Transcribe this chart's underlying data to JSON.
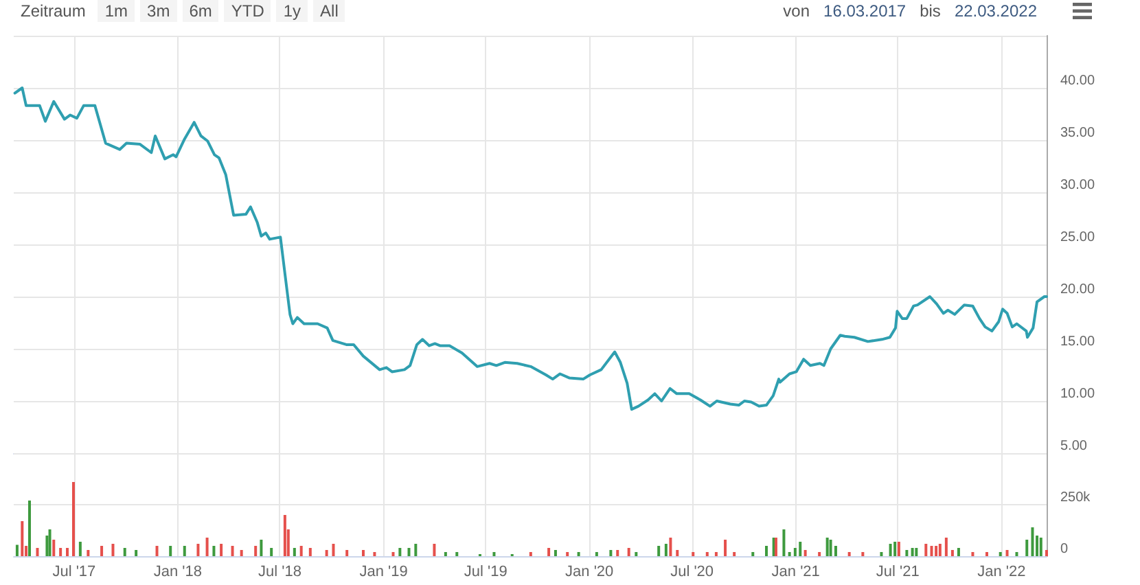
{
  "chart_data": [
    {
      "type": "line",
      "annotations": [
        "Zeitraum",
        "1m",
        "3m",
        "6m",
        "YTD",
        "1y",
        "All",
        "von",
        "16.03.2017",
        "bis",
        "22.03.2022"
      ],
      "xlim": [
        "2017-03-16",
        "2022-03-22"
      ],
      "xticks": [
        {
          "value": "2017-07-01",
          "label": null
        },
        {
          "value": "2018-01-01",
          "label": null
        },
        {
          "value": "2018-07-01",
          "label": null
        },
        {
          "value": "2019-01-01",
          "label": null
        },
        {
          "value": "2019-07-01",
          "label": null
        },
        {
          "value": "2020-01-01",
          "label": null
        },
        {
          "value": "2020-07-01",
          "label": null
        },
        {
          "value": "2021-01-01",
          "label": null
        },
        {
          "value": "2021-07-01",
          "label": null
        },
        {
          "value": "2022-01-01",
          "label": null
        }
      ],
      "ylim": [
        5,
        45
      ],
      "yticks": [
        {
          "value": 5,
          "label": "5.00"
        },
        {
          "value": 10,
          "label": "10.00"
        },
        {
          "value": 15,
          "label": "15.00"
        },
        {
          "value": 20,
          "label": "20.00"
        },
        {
          "value": 25,
          "label": "25.00"
        },
        {
          "value": 30,
          "label": "30.00"
        },
        {
          "value": 35,
          "label": "35.00"
        },
        {
          "value": 40,
          "label": "40.00"
        },
        {
          "value": 45,
          "label": null
        }
      ],
      "tick_labels": "y",
      "grid": true,
      "marker": "none",
      "line_style": "solid",
      "series": [
        {
          "color": "#2f9fb0",
          "x": [
            "2017-03-18",
            "2017-03-31",
            "2017-04-07",
            "2017-05-01",
            "2017-05-11",
            "2017-05-26",
            "2017-06-14",
            "2017-06-24",
            "2017-07-06",
            "2017-07-18",
            "2017-08-07",
            "2017-08-26",
            "2017-09-20",
            "2017-10-02",
            "2017-10-26",
            "2017-11-15",
            "2017-11-22",
            "2017-12-09",
            "2017-12-24",
            "2017-12-29",
            "2018-01-13",
            "2018-01-30",
            "2018-02-11",
            "2018-02-23",
            "2018-03-07",
            "2018-03-15",
            "2018-03-27",
            "2018-04-10",
            "2018-05-02",
            "2018-05-10",
            "2018-05-22",
            "2018-05-29",
            "2018-06-06",
            "2018-06-13",
            "2018-07-02",
            "2018-07-10",
            "2018-07-19",
            "2018-07-24",
            "2018-08-01",
            "2018-08-13",
            "2018-09-06",
            "2018-09-23",
            "2018-10-03",
            "2018-10-27",
            "2018-11-09",
            "2018-11-26",
            "2018-12-25",
            "2019-01-06",
            "2019-01-16",
            "2019-02-07",
            "2019-02-17",
            "2019-03-01",
            "2019-03-11",
            "2019-03-23",
            "2019-04-02",
            "2019-04-11",
            "2019-04-28",
            "2019-05-20",
            "2019-06-16",
            "2019-07-08",
            "2019-07-20",
            "2019-08-04",
            "2019-08-26",
            "2019-09-19",
            "2019-10-16",
            "2019-10-28",
            "2019-11-10",
            "2019-11-27",
            "2019-12-21",
            "2020-01-02",
            "2020-01-22",
            "2020-02-15",
            "2020-02-25",
            "2020-03-08",
            "2020-03-16",
            "2020-03-28",
            "2020-04-14",
            "2020-04-26",
            "2020-05-08",
            "2020-05-23",
            "2020-06-04",
            "2020-06-26",
            "2020-07-16",
            "2020-08-02",
            "2020-08-14",
            "2020-09-07",
            "2020-09-22",
            "2020-10-02",
            "2020-10-14",
            "2020-10-28",
            "2020-11-10",
            "2020-11-22",
            "2020-12-02",
            "2020-12-04",
            "2020-12-21",
            "2021-01-02",
            "2021-01-15",
            "2021-01-27",
            "2021-02-13",
            "2021-02-20",
            "2021-03-04",
            "2021-03-21",
            "2021-03-29",
            "2021-04-15",
            "2021-05-09",
            "2021-06-03",
            "2021-06-17",
            "2021-06-27",
            "2021-06-30",
            "2021-07-09",
            "2021-07-17",
            "2021-07-29",
            "2021-08-05",
            "2021-08-27",
            "2021-09-08",
            "2021-09-20",
            "2021-09-28",
            "2021-10-10",
            "2021-10-27",
            "2021-11-11",
            "2021-11-23",
            "2021-12-03",
            "2021-12-15",
            "2021-12-27",
            "2022-01-03",
            "2022-01-11",
            "2022-01-20",
            "2022-01-28",
            "2022-02-14",
            "2022-02-16",
            "2022-02-26",
            "2022-03-05",
            "2022-03-18",
            "2022-03-22"
          ],
          "values": [
            39.5,
            40.0,
            38.3,
            38.3,
            36.8,
            38.7,
            37.0,
            37.4,
            37.1,
            38.3,
            38.3,
            34.7,
            34.1,
            34.7,
            34.6,
            33.8,
            35.4,
            33.2,
            33.6,
            33.4,
            35.1,
            36.7,
            35.4,
            34.9,
            33.6,
            33.3,
            31.7,
            27.8,
            27.9,
            28.6,
            27.1,
            25.8,
            26.1,
            25.5,
            25.7,
            22.2,
            18.3,
            17.4,
            18.0,
            17.4,
            17.4,
            17.0,
            15.8,
            15.4,
            15.4,
            14.3,
            13.0,
            13.2,
            12.8,
            13.0,
            13.4,
            15.4,
            15.9,
            15.3,
            15.5,
            15.3,
            15.3,
            14.6,
            13.3,
            13.6,
            13.4,
            13.7,
            13.6,
            13.3,
            12.5,
            12.1,
            12.6,
            12.2,
            12.1,
            12.5,
            13.0,
            14.7,
            13.7,
            11.7,
            9.2,
            9.5,
            10.1,
            10.7,
            10.0,
            11.2,
            10.7,
            10.7,
            10.1,
            9.5,
            10.0,
            9.7,
            9.6,
            10.0,
            9.9,
            9.5,
            9.6,
            10.5,
            12.1,
            11.8,
            12.6,
            12.8,
            14.0,
            13.4,
            13.6,
            13.4,
            15.0,
            16.3,
            16.2,
            16.1,
            15.7,
            15.9,
            16.1,
            17.0,
            18.6,
            17.9,
            17.9,
            19.1,
            19.2,
            20.0,
            19.3,
            18.4,
            18.7,
            18.3,
            19.2,
            19.1,
            17.9,
            17.1,
            16.7,
            17.6,
            18.8,
            18.4,
            17.1,
            17.4,
            16.7,
            16.1,
            17.0,
            19.5,
            20.0,
            20.0
          ]
        }
      ]
    },
    {
      "type": "bar",
      "xlim": [
        "2017-03-16",
        "2022-03-22"
      ],
      "xticks": [
        {
          "value": "2017-07-01",
          "label": "Jul '17"
        },
        {
          "value": "2018-01-01",
          "label": "Jan '18"
        },
        {
          "value": "2018-07-01",
          "label": "Jul '18"
        },
        {
          "value": "2019-01-01",
          "label": "Jan '19"
        },
        {
          "value": "2019-07-01",
          "label": "Jul '19"
        },
        {
          "value": "2020-01-01",
          "label": "Jan '20"
        },
        {
          "value": "2020-07-01",
          "label": "Jul '20"
        },
        {
          "value": "2021-01-01",
          "label": "Jan '21"
        },
        {
          "value": "2021-07-01",
          "label": "Jul '21"
        },
        {
          "value": "2022-01-01",
          "label": "Jan '22"
        }
      ],
      "ylim": [
        0,
        500000
      ],
      "yticks": [
        0,
        {
          "value": 250000,
          "label": "250k"
        },
        {
          "value": 500000,
          "label": null
        }
      ],
      "grid": true,
      "series": [
        {
          "x": [
            "2017-03-22",
            "2017-03-31",
            "2017-04-07",
            "2017-04-13",
            "2017-04-27",
            "2017-05-14",
            "2017-05-19",
            "2017-05-26",
            "2017-06-07",
            "2017-06-19",
            "2017-06-30",
            "2017-07-12",
            "2017-07-26",
            "2017-08-19",
            "2017-09-08",
            "2017-09-29",
            "2017-10-19",
            "2017-11-25",
            "2017-12-19",
            "2018-01-13",
            "2018-02-06",
            "2018-02-22",
            "2018-03-06",
            "2018-03-19",
            "2018-04-08",
            "2018-04-24",
            "2018-05-19",
            "2018-05-29",
            "2018-06-16",
            "2018-07-10",
            "2018-07-16",
            "2018-07-27",
            "2018-08-08",
            "2018-08-24",
            "2018-09-22",
            "2018-10-04",
            "2018-10-28",
            "2018-11-26",
            "2018-12-16",
            "2019-01-18",
            "2019-01-30",
            "2019-02-15",
            "2019-02-27",
            "2019-04-01",
            "2019-04-21",
            "2019-05-11",
            "2019-06-21",
            "2019-07-16",
            "2019-08-17",
            "2019-09-19",
            "2019-10-21",
            "2019-11-02",
            "2019-11-23",
            "2019-12-13",
            "2020-01-14",
            "2020-02-08",
            "2020-02-20",
            "2020-03-11",
            "2020-03-24",
            "2020-05-03",
            "2020-05-16",
            "2020-05-24",
            "2020-06-05",
            "2020-07-03",
            "2020-07-28",
            "2020-08-13",
            "2020-08-29",
            "2020-09-14",
            "2020-10-17",
            "2020-11-10",
            "2020-11-23",
            "2020-11-27",
            "2020-12-11",
            "2020-12-21",
            "2020-12-31",
            "2021-01-09",
            "2021-01-18",
            "2021-02-12",
            "2021-02-26",
            "2021-03-04",
            "2021-03-13",
            "2021-04-06",
            "2021-04-30",
            "2021-06-02",
            "2021-06-18",
            "2021-06-26",
            "2021-07-03",
            "2021-07-17",
            "2021-07-27",
            "2021-08-03",
            "2021-08-20",
            "2021-08-30",
            "2021-09-07",
            "2021-09-14",
            "2021-09-25",
            "2021-10-06",
            "2021-10-17",
            "2021-11-11",
            "2021-12-06",
            "2021-12-30",
            "2022-01-11",
            "2022-01-28",
            "2022-02-15",
            "2022-02-25",
            "2022-03-05",
            "2022-03-12",
            "2022-03-22"
          ],
          "values": [
            55000,
            170000,
            50000,
            270000,
            40000,
            100000,
            130000,
            80000,
            40000,
            40000,
            360000,
            70000,
            30000,
            50000,
            60000,
            40000,
            30000,
            50000,
            50000,
            50000,
            60000,
            90000,
            50000,
            60000,
            50000,
            30000,
            50000,
            80000,
            40000,
            200000,
            130000,
            40000,
            50000,
            40000,
            30000,
            60000,
            30000,
            30000,
            20000,
            20000,
            40000,
            40000,
            60000,
            60000,
            20000,
            20000,
            10000,
            20000,
            10000,
            20000,
            40000,
            30000,
            20000,
            20000,
            20000,
            30000,
            30000,
            40000,
            20000,
            50000,
            60000,
            90000,
            30000,
            20000,
            20000,
            20000,
            80000,
            20000,
            20000,
            50000,
            90000,
            90000,
            130000,
            20000,
            40000,
            70000,
            30000,
            20000,
            90000,
            80000,
            50000,
            20000,
            20000,
            20000,
            60000,
            70000,
            70000,
            30000,
            40000,
            40000,
            60000,
            50000,
            50000,
            60000,
            90000,
            30000,
            40000,
            20000,
            20000,
            20000,
            30000,
            20000,
            80000,
            140000,
            100000,
            90000,
            30000
          ],
          "colors": [
            "#3e9a3e",
            "#e5504c",
            "#e5504c",
            "#3e9a3e",
            "#e5504c",
            "#3e9a3e",
            "#3e9a3e",
            "#e5504c",
            "#e5504c",
            "#e5504c",
            "#e5504c",
            "#3e9a3e",
            "#e5504c",
            "#e5504c",
            "#e5504c",
            "#3e9a3e",
            "#3e9a3e",
            "#e5504c",
            "#3e9a3e",
            "#3e9a3e",
            "#e5504c",
            "#e5504c",
            "#3e9a3e",
            "#e5504c",
            "#e5504c",
            "#e5504c",
            "#e5504c",
            "#3e9a3e",
            "#3e9a3e",
            "#e5504c",
            "#e5504c",
            "#3e9a3e",
            "#e5504c",
            "#e5504c",
            "#e5504c",
            "#e5504c",
            "#e5504c",
            "#e5504c",
            "#e5504c",
            "#e5504c",
            "#3e9a3e",
            "#3e9a3e",
            "#3e9a3e",
            "#e5504c",
            "#3e9a3e",
            "#3e9a3e",
            "#3e9a3e",
            "#3e9a3e",
            "#3e9a3e",
            "#e5504c",
            "#e5504c",
            "#3e9a3e",
            "#e5504c",
            "#3e9a3e",
            "#3e9a3e",
            "#3e9a3e",
            "#e5504c",
            "#e5504c",
            "#3e9a3e",
            "#3e9a3e",
            "#3e9a3e",
            "#e5504c",
            "#e5504c",
            "#e5504c",
            "#e5504c",
            "#e5504c",
            "#e5504c",
            "#e5504c",
            "#3e9a3e",
            "#3e9a3e",
            "#3e9a3e",
            "#e5504c",
            "#3e9a3e",
            "#3e9a3e",
            "#3e9a3e",
            "#3e9a3e",
            "#e5504c",
            "#e5504c",
            "#3e9a3e",
            "#3e9a3e",
            "#3e9a3e",
            "#e5504c",
            "#e5504c",
            "#3e9a3e",
            "#3e9a3e",
            "#3e9a3e",
            "#e5504c",
            "#3e9a3e",
            "#3e9a3e",
            "#3e9a3e",
            "#e5504c",
            "#e5504c",
            "#e5504c",
            "#e5504c",
            "#e5504c",
            "#e5504c",
            "#3e9a3e",
            "#e5504c",
            "#e5504c",
            "#3e9a3e",
            "#e5504c",
            "#3e9a3e",
            "#3e9a3e",
            "#3e9a3e",
            "#3e9a3e",
            "#3e9a3e",
            "#e5504c"
          ]
        }
      ]
    }
  ]
}
